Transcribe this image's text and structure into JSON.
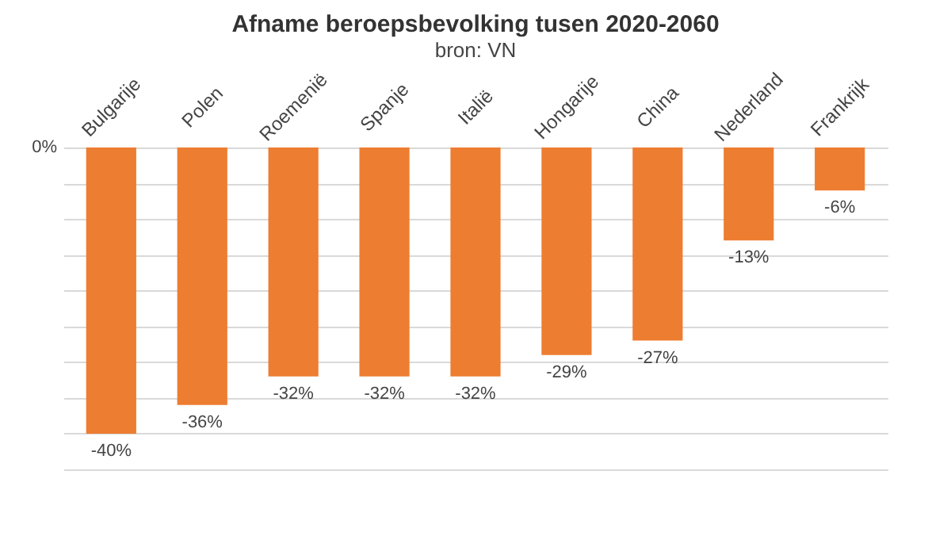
{
  "chart_data": {
    "type": "bar",
    "title": "Afname beroepsbevolking tusen 2020-2060",
    "subtitle": "bron: VN",
    "categories": [
      "Bulgarije",
      "Polen",
      "Roemenië",
      "Spanje",
      "Italië",
      "Hongarije",
      "China",
      "Nederland",
      "Frankrijk"
    ],
    "values": [
      -40,
      -36,
      -32,
      -32,
      -32,
      -29,
      -27,
      -13,
      -6
    ],
    "value_labels": [
      "-40%",
      "-36%",
      "-32%",
      "-32%",
      "-32%",
      "-29%",
      "-27%",
      "-13%",
      "-6%"
    ],
    "color": "#ed7d31",
    "ylim": [
      -45,
      0
    ],
    "yticks": [
      {
        "value": 0,
        "label": null
      },
      {
        "value": -5,
        "label": null
      },
      {
        "value": -10,
        "label": null
      },
      {
        "value": -15,
        "label": null
      },
      {
        "value": -20,
        "label": null
      },
      {
        "value": -25,
        "label": null
      },
      {
        "value": -30,
        "label": null
      },
      {
        "value": -35,
        "label": null
      },
      {
        "value": -40,
        "label": null
      },
      {
        "value": -45,
        "label": null
      }
    ],
    "annotations": [
      "0%"
    ],
    "grid": "y"
  }
}
